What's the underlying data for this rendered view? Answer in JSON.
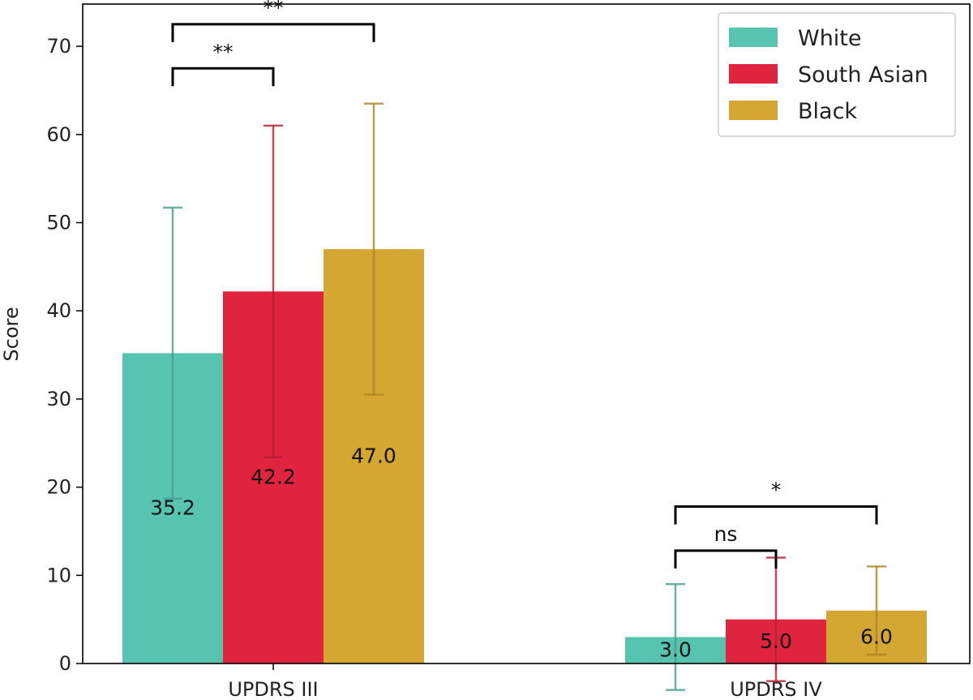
{
  "chart_data": {
    "type": "bar",
    "title": "",
    "xlabel": "",
    "ylabel": "Score",
    "ylim": [
      0,
      75
    ],
    "yticks": [
      0,
      10,
      20,
      30,
      40,
      50,
      60,
      70
    ],
    "categories": [
      "UPDRS III",
      "UPDRS IV"
    ],
    "series": [
      {
        "name": "White",
        "color": "#57c4b0",
        "values": [
          35.2,
          3.0
        ],
        "error": [
          16.5,
          6.0
        ],
        "labels": [
          "35.2",
          "3.0"
        ]
      },
      {
        "name": "South Asian",
        "color": "#e0243f",
        "values": [
          42.2,
          5.0
        ],
        "error": [
          18.8,
          7.0
        ],
        "labels": [
          "42.2",
          "5.0"
        ]
      },
      {
        "name": "Black",
        "color": "#d4a632",
        "values": [
          47.0,
          6.0
        ],
        "error": [
          16.5,
          5.0
        ],
        "labels": [
          "47.0",
          "6.0"
        ]
      }
    ],
    "significance": [
      {
        "category": 0,
        "from": 0,
        "to": 1,
        "level": 67.5,
        "label": "**"
      },
      {
        "category": 0,
        "from": 0,
        "to": 2,
        "level": 72.5,
        "label": "**"
      },
      {
        "category": 1,
        "from": 0,
        "to": 1,
        "level": 12.8,
        "label": "ns"
      },
      {
        "category": 1,
        "from": 0,
        "to": 2,
        "level": 17.8,
        "label": "*"
      }
    ],
    "legend_position": "top-right",
    "grid": false
  }
}
